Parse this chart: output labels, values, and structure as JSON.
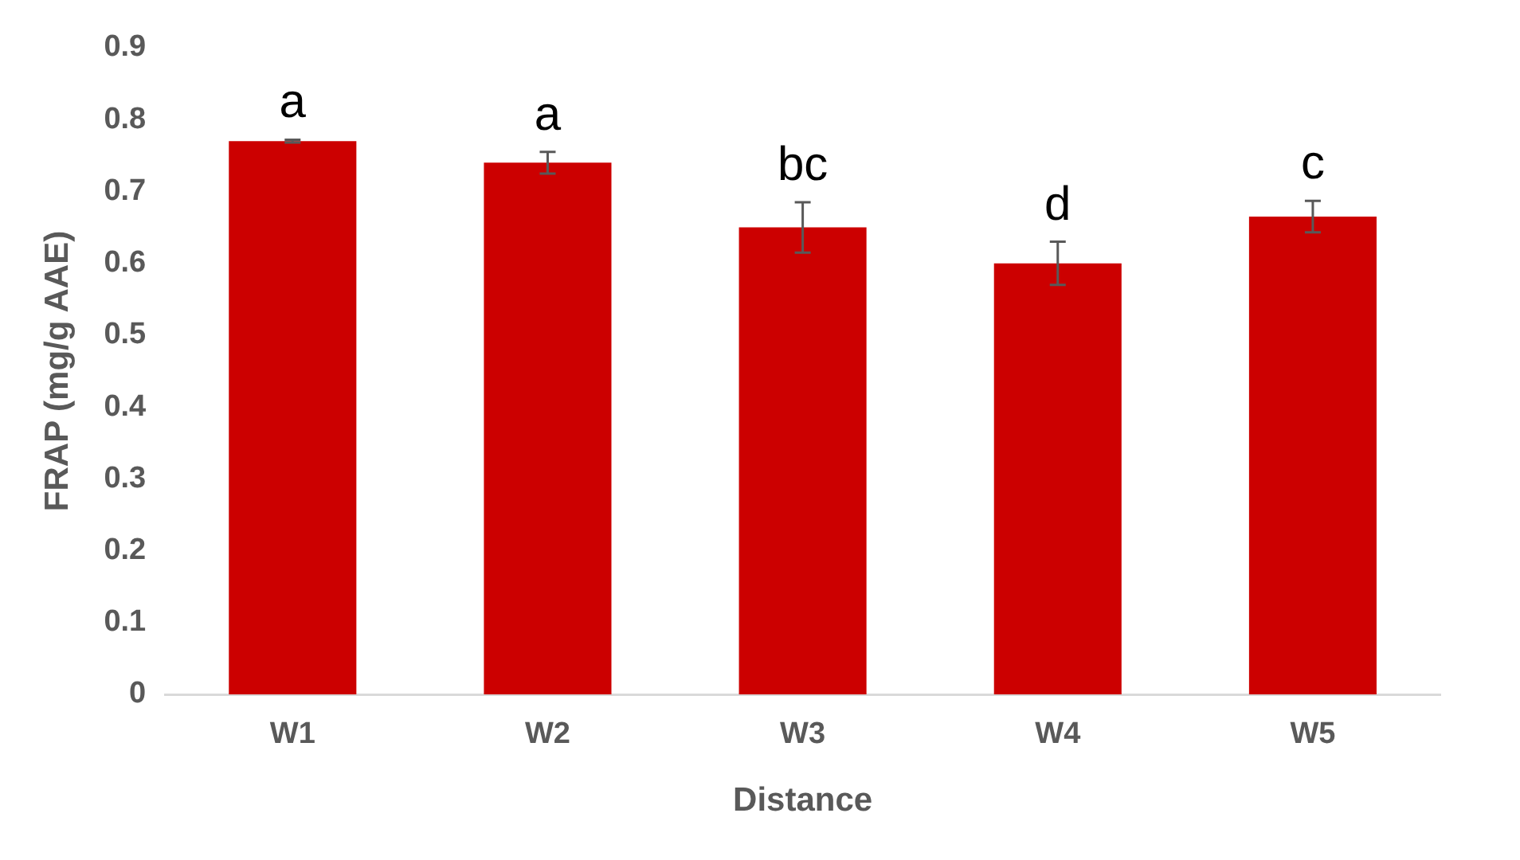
{
  "chart_data": {
    "type": "bar",
    "xlabel": "Distance",
    "ylabel": "FRAP (mg/g AAE)",
    "categories": [
      "W1",
      "W2",
      "W3",
      "W4",
      "W5"
    ],
    "values": [
      0.77,
      0.74,
      0.65,
      0.6,
      0.665
    ],
    "errors": [
      0.002,
      0.015,
      0.035,
      0.03,
      0.022
    ],
    "color": "#cc0000",
    "ylim": [
      0,
      0.9
    ],
    "yticks": [
      0,
      0.1,
      0.2,
      0.3,
      0.4,
      0.5,
      0.6,
      0.7,
      0.8,
      0.9
    ],
    "grid": false,
    "legend": false,
    "annotations": [
      "a",
      "a",
      "bc",
      "d",
      "c"
    ]
  }
}
